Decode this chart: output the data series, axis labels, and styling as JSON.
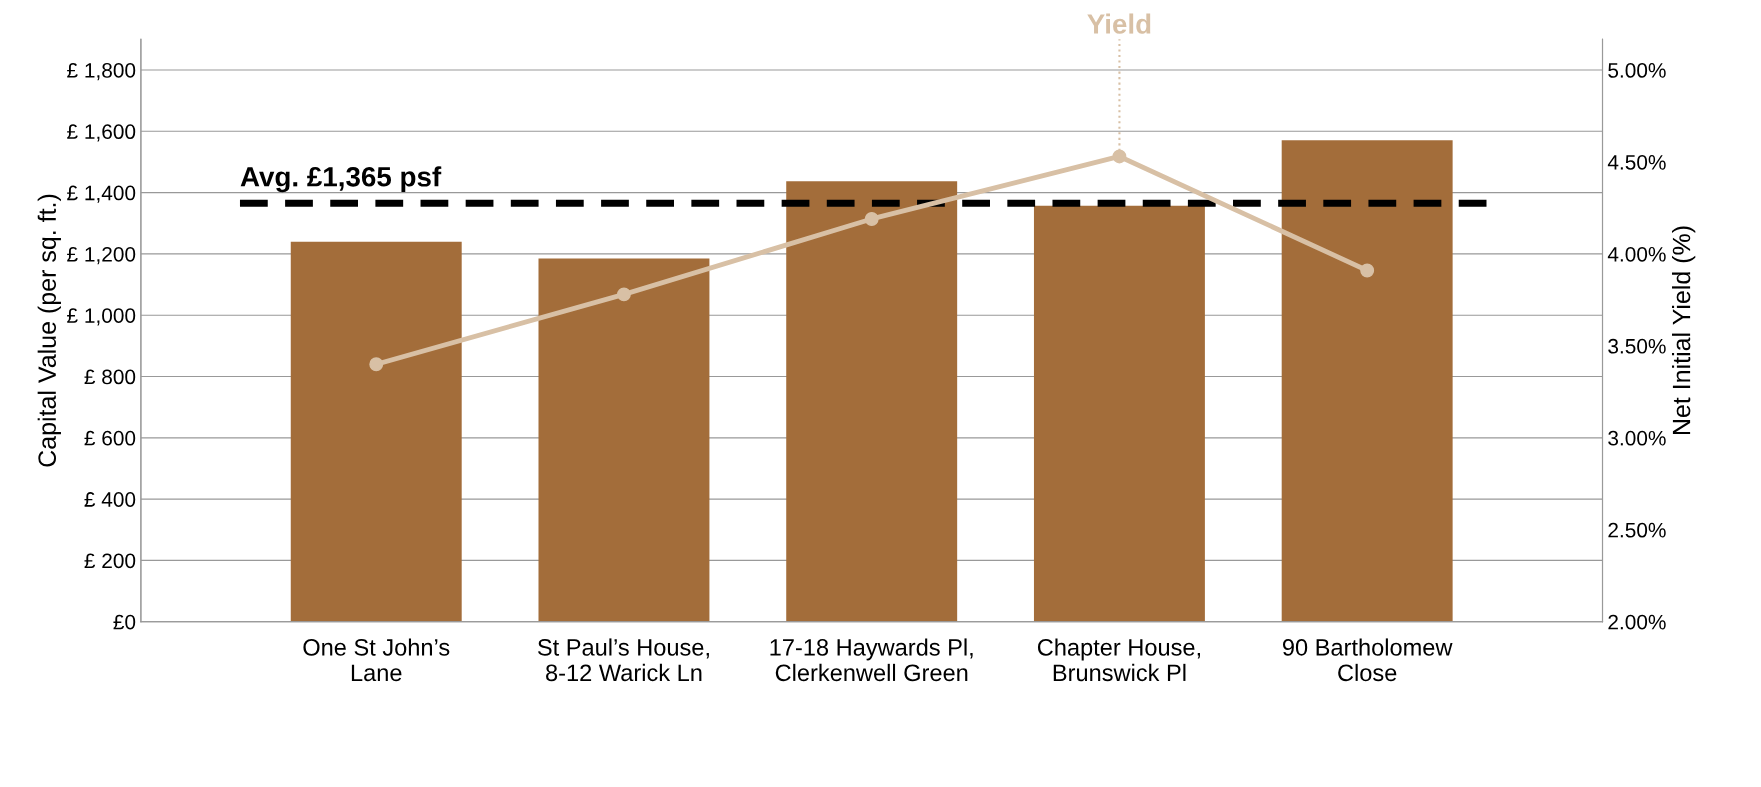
{
  "chart_data": {
    "type": "bar",
    "ylabel": "Capital Value (per sq. ft.)",
    "y2label": "Net Initial Yield (%)",
    "categories": [
      "One St John’s\nLane",
      "St Paul’s House,\n8-12 Warick Ln",
      "17-18 Haywards Pl,\nClerkenwell Green",
      "Chapter House,\nBrunswick Pl",
      "90 Bartholomew\nClose"
    ],
    "series": [
      {
        "color": "#a36d3a",
        "values": [
          1240,
          1185,
          1437,
          1357,
          1571
        ]
      },
      {
        "type": "line",
        "name": "Yield",
        "axis": "y2",
        "color": "#d8c0a5",
        "marker": "circle",
        "values": [
          3.4,
          3.78,
          4.19,
          4.53,
          3.91
        ]
      }
    ],
    "ylim": [
      0,
      1900
    ],
    "yticks": [
      {
        "value": 0,
        "label": "£0"
      },
      {
        "value": 200,
        "label": "£ 200"
      },
      {
        "value": 400,
        "label": "£ 400"
      },
      {
        "value": 600,
        "label": "£ 600"
      },
      {
        "value": 800,
        "label": "£ 800"
      },
      {
        "value": 1000,
        "label": "£ 1,000"
      },
      {
        "value": 1200,
        "label": "£ 1,200"
      },
      {
        "value": 1400,
        "label": "£ 1,400"
      },
      {
        "value": 1600,
        "label": "£ 1,600"
      },
      {
        "value": 1800,
        "label": "£ 1,800"
      }
    ],
    "y2lim": [
      2.0,
      5.1667
    ],
    "y2ticks": [
      {
        "value": 2.0,
        "label": "2.00%"
      },
      {
        "value": 2.5,
        "label": "2.50%"
      },
      {
        "value": 3.0,
        "label": "3.00%"
      },
      {
        "value": 3.5,
        "label": "3.50%"
      },
      {
        "value": 4.0,
        "label": "4.00%"
      },
      {
        "value": 4.5,
        "label": "4.50%"
      },
      {
        "value": 5.0,
        "label": "5.00%"
      }
    ],
    "ref_lines": [
      {
        "axis": "y",
        "value": 1365,
        "label": "Avg. £1,365 psf",
        "color": "#000000",
        "line_style": "dashed"
      }
    ],
    "grid": "y",
    "legend": false
  }
}
